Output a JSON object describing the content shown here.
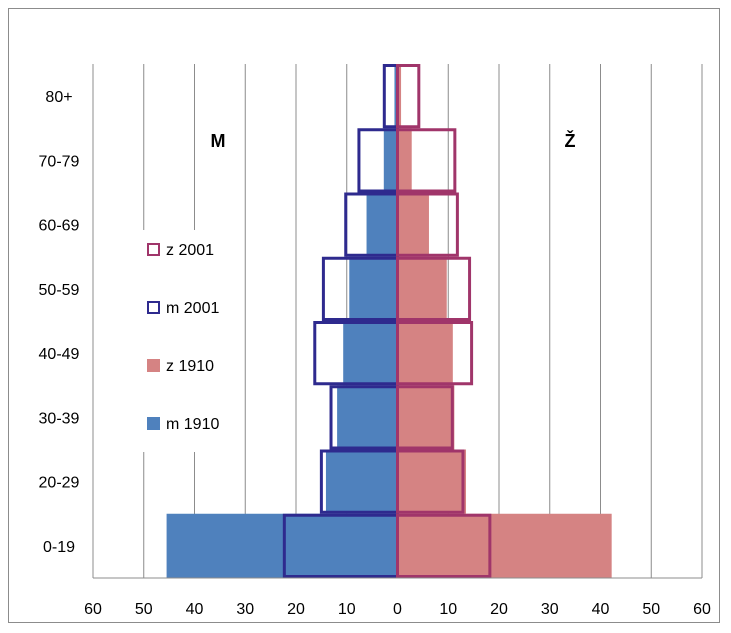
{
  "chart_data": {
    "type": "bar",
    "orientation": "horizontal-population-pyramid",
    "categories": [
      "0-19",
      "20-29",
      "30-39",
      "40-49",
      "50-59",
      "60-69",
      "70-79",
      "80+"
    ],
    "x_tick_labels": [
      "60",
      "50",
      "40",
      "30",
      "20",
      "10",
      "0",
      "10",
      "20",
      "30",
      "40",
      "50",
      "60"
    ],
    "xlim": [
      -60,
      60
    ],
    "grid": true,
    "side_labels": {
      "left": "M",
      "right": "Ž"
    },
    "legend_position": "left-center",
    "series": [
      {
        "name": "z  2001",
        "side": "right",
        "style": "outline",
        "color": "#A0356A",
        "values": [
          18.2,
          12.9,
          10.8,
          14.6,
          14.2,
          11.8,
          11.3,
          4.2
        ]
      },
      {
        "name": "m 2001",
        "side": "left",
        "style": "outline",
        "color": "#2E2A8E",
        "values": [
          22.3,
          15.0,
          13.1,
          16.3,
          14.6,
          10.2,
          7.6,
          2.6
        ]
      },
      {
        "name": "z  1910",
        "side": "right",
        "style": "filled",
        "color": "#D58383",
        "values": [
          42.2,
          13.5,
          11.2,
          10.9,
          9.7,
          6.2,
          2.8,
          0.7
        ]
      },
      {
        "name": "m 1910",
        "side": "left",
        "style": "filled",
        "color": "#4F81BD",
        "values": [
          45.5,
          14.1,
          11.9,
          10.7,
          9.5,
          6.1,
          2.7,
          0.6
        ]
      }
    ]
  }
}
